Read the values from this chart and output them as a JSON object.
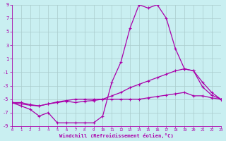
{
  "xlabel": "Windchill (Refroidissement éolien,°C)",
  "xlim": [
    0,
    23
  ],
  "ylim": [
    -9,
    9
  ],
  "xticks": [
    0,
    1,
    2,
    3,
    4,
    5,
    6,
    7,
    8,
    9,
    10,
    11,
    12,
    13,
    14,
    15,
    16,
    17,
    18,
    19,
    20,
    21,
    22,
    23
  ],
  "yticks": [
    -9,
    -7,
    -5,
    -3,
    -1,
    1,
    3,
    5,
    7,
    9
  ],
  "bg_color": "#c9eff1",
  "line_color": "#aa00aa",
  "grid_color": "#aacccc",
  "line1_x": [
    0,
    1,
    2,
    3,
    4,
    5,
    6,
    7,
    8,
    9,
    10,
    11,
    12,
    13,
    14,
    15,
    16,
    17,
    18,
    19,
    20,
    21,
    22,
    23
  ],
  "line1_y": [
    -5.5,
    -6.0,
    -6.5,
    -7.5,
    -7.0,
    -8.5,
    -8.5,
    -8.5,
    -8.5,
    -8.5,
    -7.5,
    -2.5,
    0.5,
    5.5,
    9.0,
    8.5,
    9.0,
    7.0,
    2.5,
    -0.5,
    -0.8,
    -3.2,
    -4.4,
    -5.0
  ],
  "line2_x": [
    0,
    1,
    2,
    3,
    4,
    5,
    6,
    7,
    8,
    9,
    10,
    11,
    12,
    13,
    14,
    15,
    16,
    17,
    18,
    19,
    20,
    21,
    22,
    23
  ],
  "line2_y": [
    -5.5,
    -5.7,
    -5.9,
    -6.0,
    -5.7,
    -5.5,
    -5.3,
    -5.5,
    -5.3,
    -5.2,
    -5.0,
    -4.5,
    -4.0,
    -3.3,
    -2.8,
    -2.3,
    -1.8,
    -1.3,
    -0.8,
    -0.5,
    -0.8,
    -2.5,
    -4.0,
    -5.0
  ],
  "line3_x": [
    0,
    1,
    2,
    3,
    4,
    5,
    6,
    7,
    8,
    9,
    10,
    11,
    12,
    13,
    14,
    15,
    16,
    17,
    18,
    19,
    20,
    21,
    22,
    23
  ],
  "line3_y": [
    -5.5,
    -5.5,
    -5.8,
    -6.0,
    -5.7,
    -5.4,
    -5.2,
    -5.0,
    -5.0,
    -5.0,
    -5.0,
    -5.0,
    -5.0,
    -5.0,
    -5.0,
    -4.8,
    -4.6,
    -4.4,
    -4.2,
    -4.0,
    -4.5,
    -4.5,
    -4.8,
    -5.0
  ]
}
